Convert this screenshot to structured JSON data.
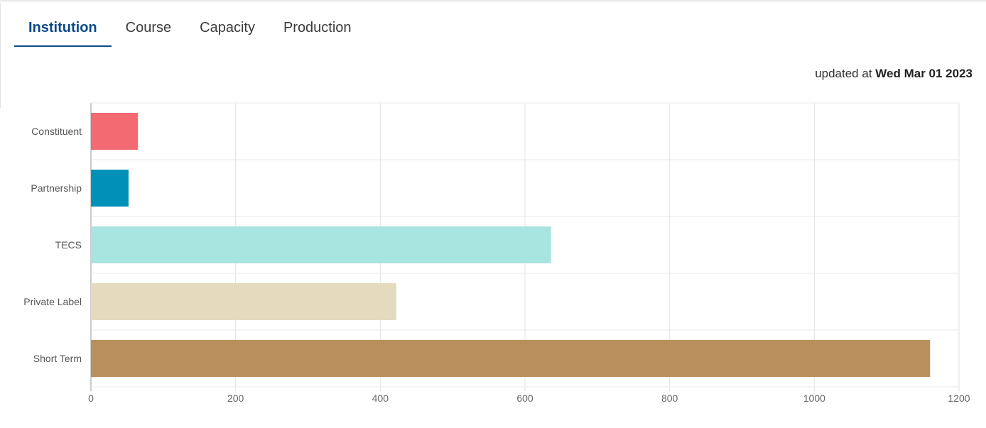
{
  "tabs": [
    {
      "label": "Institution",
      "active": true
    },
    {
      "label": "Course",
      "active": false
    },
    {
      "label": "Capacity",
      "active": false
    },
    {
      "label": "Production",
      "active": false
    }
  ],
  "updated": {
    "prefix": "updated at",
    "date": "Wed Mar 01 2023"
  },
  "chart_data": {
    "type": "bar",
    "orientation": "horizontal",
    "categories": [
      "Constituent",
      "Partnership",
      "TECS",
      "Private Label",
      "Short Term"
    ],
    "values": [
      65,
      52,
      636,
      422,
      1160
    ],
    "colors": [
      "#f46a72",
      "#0090b8",
      "#a8e4e0",
      "#e4dbbe",
      "#b98f5e"
    ],
    "xlim": [
      0,
      1200
    ],
    "xticks": [
      "0",
      "200",
      "400",
      "600",
      "800",
      "1000",
      "1200"
    ],
    "title": "",
    "xlabel": "",
    "ylabel": "",
    "grid": true,
    "legend": "none"
  }
}
